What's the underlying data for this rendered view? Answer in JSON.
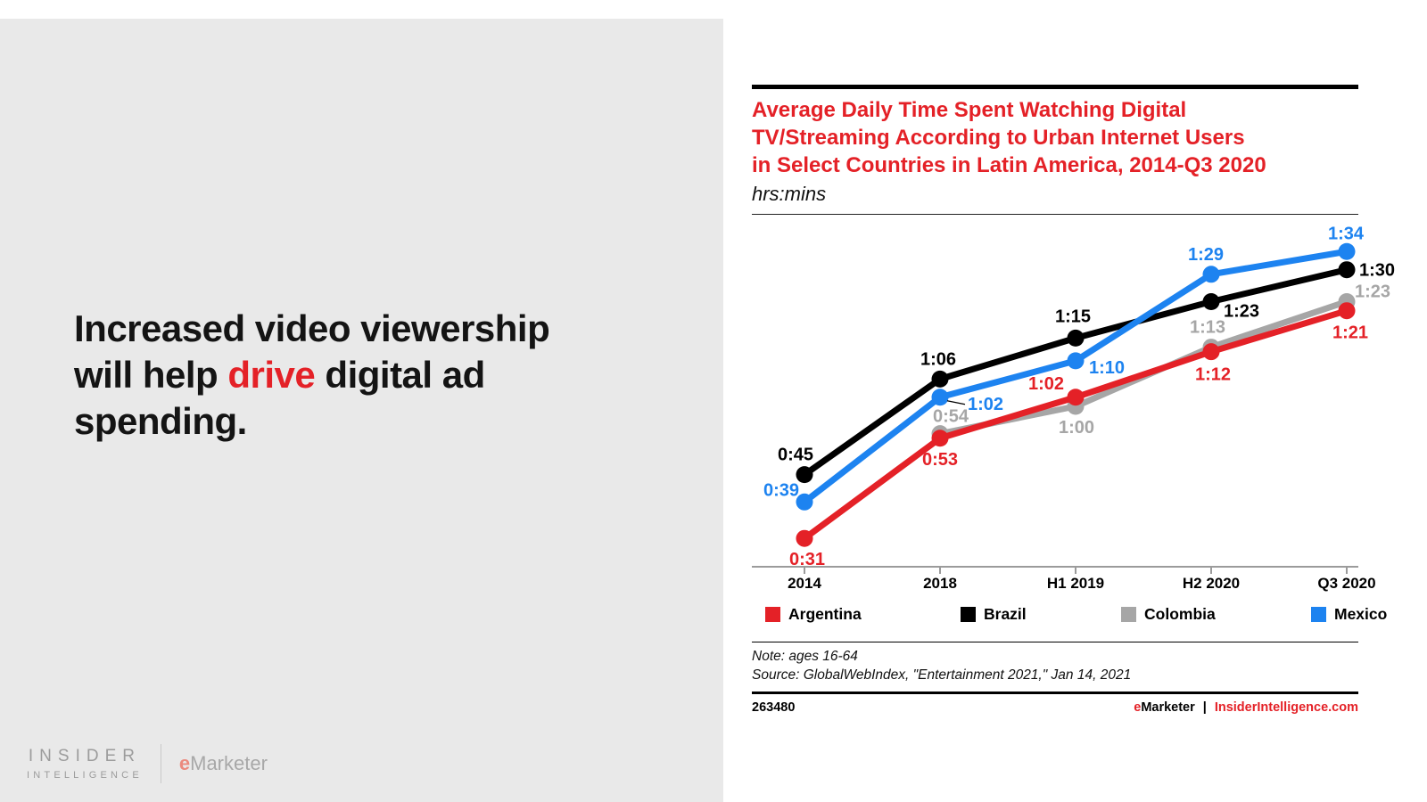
{
  "headline": {
    "line1": "Increased video viewership",
    "line2_pre": "will help ",
    "line2_accent": "drive",
    "line2_post": " digital ad",
    "line3": "spending.",
    "accent_color": "#e42127"
  },
  "brand": {
    "insider_line1": "INSIDER",
    "insider_line2": "INTELLIGENCE",
    "emarketer_e": "e",
    "emarketer_rest": "Marketer",
    "emarketer_e_color": "#eb8a7e"
  },
  "widget": {
    "title_lines": [
      "Average Daily Time Spent Watching Digital",
      "TV/Streaming According to Urban Internet Users",
      "in Select Countries in Latin America, 2014-Q3 2020"
    ],
    "title_color": "#e42127",
    "subtitle": "hrs:mins",
    "note": "Note: ages 16-64",
    "source": "Source: GlobalWebIndex, \"Entertainment 2021,\" Jan 14, 2021",
    "chart_id": "263480",
    "footer_brand_e": "e",
    "footer_brand_rest": "Marketer",
    "footer_separator": "|",
    "footer_site": "InsiderIntelligence.com",
    "footer_site_color": "#e42127"
  },
  "chart_data": {
    "type": "line",
    "title": "Average Daily Time Spent Watching Digital TV/Streaming According to Urban Internet Users in Select Countries in Latin America, 2014-Q3 2020",
    "unit_label": "hrs:mins",
    "categories": [
      "2014",
      "2018",
      "H1 2019",
      "H2 2020",
      "Q3 2020"
    ],
    "legend_position": "bottom",
    "grid": false,
    "x_axis_color": "#9b9b9b",
    "y_range_minutes": [
      25,
      102
    ],
    "draw_order": [
      2,
      1,
      0,
      3
    ],
    "series": [
      {
        "name": "Argentina",
        "color": "#e42127",
        "points": [
          {
            "t": "0:31",
            "m": 31,
            "anchor": "middle",
            "dx": 3,
            "dy": 30
          },
          {
            "t": "0:53",
            "m": 53,
            "anchor": "middle",
            "dx": 0,
            "dy": 30
          },
          {
            "t": "1:02",
            "m": 62,
            "anchor": "end",
            "dx": -13,
            "dy": -9
          },
          {
            "t": "1:12",
            "m": 72,
            "anchor": "middle",
            "dx": 2,
            "dy": 32
          },
          {
            "t": "1:21",
            "m": 81,
            "anchor": "middle",
            "dx": 4,
            "dy": 31
          }
        ]
      },
      {
        "name": "Brazil",
        "color": "#000000",
        "points": [
          {
            "t": "0:45",
            "m": 45,
            "anchor": "middle",
            "dx": -10,
            "dy": -16
          },
          {
            "t": "1:06",
            "m": 66,
            "anchor": "middle",
            "dx": -2,
            "dy": -16
          },
          {
            "t": "1:15",
            "m": 75,
            "anchor": "middle",
            "dx": -3,
            "dy": -18
          },
          {
            "t": "1:23",
            "m": 83,
            "anchor": "start",
            "dx": 14,
            "dy": 17
          },
          {
            "t": "1:30",
            "m": 90,
            "anchor": "start",
            "dx": 14,
            "dy": 7
          }
        ]
      },
      {
        "name": "Colombia",
        "color": "#a6a6a6",
        "points": [
          null,
          {
            "t": "0:54",
            "m": 54,
            "anchor": "middle",
            "dx": 12,
            "dy": -13
          },
          {
            "t": "1:00",
            "m": 60,
            "anchor": "middle",
            "dx": 1,
            "dy": 30
          },
          {
            "t": "1:13",
            "m": 73,
            "anchor": "middle",
            "dx": -4,
            "dy": -16
          },
          {
            "t": "1:23",
            "m": 83,
            "anchor": "start",
            "dx": 9,
            "dy": -5
          }
        ]
      },
      {
        "name": "Mexico",
        "color": "#1d83f0",
        "points": [
          {
            "t": "0:39",
            "m": 39,
            "anchor": "end",
            "dx": -6,
            "dy": -7
          },
          {
            "t": "1:02",
            "m": 62,
            "anchor": "start",
            "dx": 31,
            "dy": 14,
            "callout": true
          },
          {
            "t": "1:10",
            "m": 70,
            "anchor": "start",
            "dx": 15,
            "dy": 14
          },
          {
            "t": "1:29",
            "m": 89,
            "anchor": "middle",
            "dx": -6,
            "dy": -16
          },
          {
            "t": "1:34",
            "m": 94,
            "anchor": "middle",
            "dx": -1,
            "dy": -14
          }
        ]
      }
    ]
  }
}
